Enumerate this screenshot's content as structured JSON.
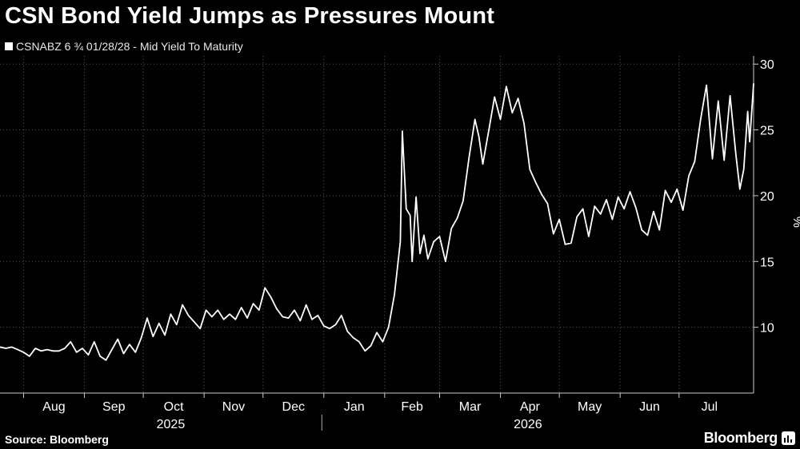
{
  "header": {
    "title": "CSN Bond Yield Jumps as Pressures Mount",
    "legend_label": "CSNABZ 6 ¾ 01/28/28 - Mid Yield To Maturity"
  },
  "footer": {
    "source": "Source: Bloomberg",
    "brand": "Bloomberg"
  },
  "colors": {
    "background": "#000000",
    "line": "#ffffff",
    "grid": "#555555",
    "text": "#ffffff"
  },
  "chart_data": {
    "type": "line",
    "title": "CSN Bond Yield Jumps as Pressures Mount",
    "ylabel": "%",
    "y_axis_position": "right",
    "ylim": [
      5,
      30.5
    ],
    "yticks": [
      10,
      15,
      20,
      25,
      30
    ],
    "xlim": [
      "2025-07-20",
      "2026-08-08"
    ],
    "x_month_ticks": [
      {
        "label": "Aug",
        "date": "2025-08-01"
      },
      {
        "label": "Sep",
        "date": "2025-09-01"
      },
      {
        "label": "Oct",
        "date": "2025-10-01"
      },
      {
        "label": "Nov",
        "date": "2025-11-01"
      },
      {
        "label": "Dec",
        "date": "2025-12-01"
      },
      {
        "label": "Jan",
        "date": "2026-01-01"
      },
      {
        "label": "Feb",
        "date": "2026-02-01"
      },
      {
        "label": "Mar",
        "date": "2026-03-01"
      },
      {
        "label": "Apr",
        "date": "2026-04-01"
      },
      {
        "label": "May",
        "date": "2026-05-01"
      },
      {
        "label": "Jun",
        "date": "2026-06-01"
      },
      {
        "label": "Jul",
        "date": "2026-07-01"
      }
    ],
    "x_year_labels": [
      {
        "label": "2025",
        "date": "2025-10-15"
      },
      {
        "label": "2026",
        "date": "2026-04-15"
      }
    ],
    "year_divider_date": "2025-12-31",
    "grid": true,
    "legend": "top-left",
    "series": [
      {
        "name": "CSNABZ 6 ¾ 01/28/28 - Mid Yield To Maturity",
        "points": [
          [
            "2025-07-20",
            8.5
          ],
          [
            "2025-07-23",
            8.4
          ],
          [
            "2025-07-26",
            8.5
          ],
          [
            "2025-07-29",
            8.3
          ],
          [
            "2025-08-01",
            8.1
          ],
          [
            "2025-08-04",
            7.8
          ],
          [
            "2025-08-07",
            8.4
          ],
          [
            "2025-08-10",
            8.2
          ],
          [
            "2025-08-13",
            8.3
          ],
          [
            "2025-08-16",
            8.2
          ],
          [
            "2025-08-19",
            8.2
          ],
          [
            "2025-08-22",
            8.4
          ],
          [
            "2025-08-25",
            8.9
          ],
          [
            "2025-08-28",
            8.1
          ],
          [
            "2025-08-31",
            8.4
          ],
          [
            "2025-09-03",
            7.9
          ],
          [
            "2025-09-06",
            8.9
          ],
          [
            "2025-09-09",
            7.8
          ],
          [
            "2025-09-12",
            7.5
          ],
          [
            "2025-09-15",
            8.3
          ],
          [
            "2025-09-18",
            9.1
          ],
          [
            "2025-09-21",
            8.0
          ],
          [
            "2025-09-24",
            8.7
          ],
          [
            "2025-09-27",
            8.1
          ],
          [
            "2025-09-30",
            9.2
          ],
          [
            "2025-10-03",
            10.7
          ],
          [
            "2025-10-06",
            9.3
          ],
          [
            "2025-10-09",
            10.3
          ],
          [
            "2025-10-12",
            9.4
          ],
          [
            "2025-10-15",
            11.0
          ],
          [
            "2025-10-18",
            10.2
          ],
          [
            "2025-10-21",
            11.7
          ],
          [
            "2025-10-24",
            10.9
          ],
          [
            "2025-10-27",
            10.4
          ],
          [
            "2025-10-30",
            9.9
          ],
          [
            "2025-11-02",
            11.3
          ],
          [
            "2025-11-05",
            10.8
          ],
          [
            "2025-11-08",
            11.3
          ],
          [
            "2025-11-11",
            10.6
          ],
          [
            "2025-11-14",
            11.0
          ],
          [
            "2025-11-17",
            10.6
          ],
          [
            "2025-11-20",
            11.5
          ],
          [
            "2025-11-23",
            10.7
          ],
          [
            "2025-11-26",
            11.8
          ],
          [
            "2025-11-29",
            11.3
          ],
          [
            "2025-12-02",
            13.0
          ],
          [
            "2025-12-05",
            12.3
          ],
          [
            "2025-12-08",
            11.4
          ],
          [
            "2025-12-11",
            10.8
          ],
          [
            "2025-12-14",
            10.7
          ],
          [
            "2025-12-17",
            11.3
          ],
          [
            "2025-12-20",
            10.5
          ],
          [
            "2025-12-23",
            11.7
          ],
          [
            "2025-12-26",
            10.6
          ],
          [
            "2025-12-29",
            10.9
          ],
          [
            "2026-01-01",
            10.1
          ],
          [
            "2026-01-04",
            9.9
          ],
          [
            "2026-01-07",
            10.2
          ],
          [
            "2026-01-10",
            10.9
          ],
          [
            "2026-01-13",
            9.7
          ],
          [
            "2026-01-16",
            9.2
          ],
          [
            "2026-01-19",
            8.9
          ],
          [
            "2026-01-22",
            8.2
          ],
          [
            "2026-01-25",
            8.6
          ],
          [
            "2026-01-28",
            9.6
          ],
          [
            "2026-01-31",
            8.9
          ],
          [
            "2026-02-03",
            10.0
          ],
          [
            "2026-02-06",
            12.5
          ],
          [
            "2026-02-09",
            16.5
          ],
          [
            "2026-02-10",
            24.9
          ],
          [
            "2026-02-12",
            19.0
          ],
          [
            "2026-02-14",
            18.5
          ],
          [
            "2026-02-15",
            15.0
          ],
          [
            "2026-02-17",
            19.9
          ],
          [
            "2026-02-19",
            15.6
          ],
          [
            "2026-02-21",
            17.0
          ],
          [
            "2026-02-23",
            15.2
          ],
          [
            "2026-02-26",
            16.5
          ],
          [
            "2026-03-01",
            16.9
          ],
          [
            "2026-03-04",
            15.0
          ],
          [
            "2026-03-07",
            17.5
          ],
          [
            "2026-03-10",
            18.3
          ],
          [
            "2026-03-13",
            19.6
          ],
          [
            "2026-03-16",
            22.9
          ],
          [
            "2026-03-19",
            25.8
          ],
          [
            "2026-03-21",
            24.5
          ],
          [
            "2026-03-23",
            22.4
          ],
          [
            "2026-03-26",
            24.9
          ],
          [
            "2026-03-29",
            27.5
          ],
          [
            "2026-04-01",
            25.8
          ],
          [
            "2026-04-04",
            28.3
          ],
          [
            "2026-04-07",
            26.3
          ],
          [
            "2026-04-10",
            27.4
          ],
          [
            "2026-04-13",
            25.5
          ],
          [
            "2026-04-16",
            22.0
          ],
          [
            "2026-04-19",
            21.0
          ],
          [
            "2026-04-22",
            20.1
          ],
          [
            "2026-04-25",
            19.4
          ],
          [
            "2026-04-28",
            17.1
          ],
          [
            "2026-05-01",
            18.2
          ],
          [
            "2026-05-04",
            16.3
          ],
          [
            "2026-05-07",
            16.4
          ],
          [
            "2026-05-10",
            18.4
          ],
          [
            "2026-05-13",
            19.0
          ],
          [
            "2026-05-16",
            16.9
          ],
          [
            "2026-05-19",
            19.2
          ],
          [
            "2026-05-22",
            18.6
          ],
          [
            "2026-05-25",
            19.7
          ],
          [
            "2026-05-28",
            18.2
          ],
          [
            "2026-05-31",
            19.9
          ],
          [
            "2026-06-03",
            19.0
          ],
          [
            "2026-06-06",
            20.3
          ],
          [
            "2026-06-09",
            19.1
          ],
          [
            "2026-06-12",
            17.4
          ],
          [
            "2026-06-15",
            17.0
          ],
          [
            "2026-06-18",
            18.8
          ],
          [
            "2026-06-21",
            17.4
          ],
          [
            "2026-06-24",
            20.4
          ],
          [
            "2026-06-27",
            19.5
          ],
          [
            "2026-06-30",
            20.5
          ],
          [
            "2026-07-03",
            18.9
          ],
          [
            "2026-07-06",
            21.5
          ],
          [
            "2026-07-09",
            22.6
          ],
          [
            "2026-07-12",
            25.8
          ],
          [
            "2026-07-15",
            28.4
          ],
          [
            "2026-07-18",
            22.8
          ],
          [
            "2026-07-21",
            27.2
          ],
          [
            "2026-07-24",
            22.7
          ],
          [
            "2026-07-27",
            27.6
          ],
          [
            "2026-07-30",
            23.1
          ],
          [
            "2026-08-01",
            20.5
          ],
          [
            "2026-08-03",
            22.0
          ],
          [
            "2026-08-05",
            26.4
          ],
          [
            "2026-08-06",
            24.1
          ],
          [
            "2026-08-08",
            28.5
          ]
        ]
      }
    ]
  }
}
